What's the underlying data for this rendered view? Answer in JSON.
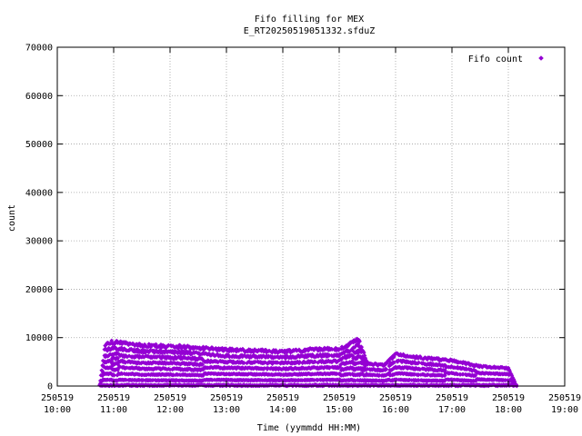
{
  "chart_data": {
    "type": "scatter",
    "title_line1": "Fifo filling for MEX",
    "title_line2": "E_RT20250519051332.sfduZ",
    "xlabel": "Time (yymmdd HH:MM)",
    "ylabel": "count",
    "legend": {
      "label": "Fifo count",
      "position": "top-right"
    },
    "colors": {
      "marker": "#9400d3",
      "grid": "#a0a0a0",
      "axis": "#000000"
    },
    "grid": true,
    "ylim": [
      0,
      70000
    ],
    "yticks": [
      0,
      10000,
      20000,
      30000,
      40000,
      50000,
      60000,
      70000
    ],
    "ytick_labels": [
      "0",
      "10000",
      "20000",
      "30000",
      "40000",
      "50000",
      "60000",
      "70000"
    ],
    "xlim_hours": [
      10.0,
      19.0
    ],
    "xticks": [
      {
        "hour": 10,
        "date": "250519",
        "time": "10:00"
      },
      {
        "hour": 11,
        "date": "250519",
        "time": "11:00"
      },
      {
        "hour": 12,
        "date": "250519",
        "time": "12:00"
      },
      {
        "hour": 13,
        "date": "250519",
        "time": "13:00"
      },
      {
        "hour": 14,
        "date": "250519",
        "time": "14:00"
      },
      {
        "hour": 15,
        "date": "250519",
        "time": "15:00"
      },
      {
        "hour": 16,
        "date": "250519",
        "time": "16:00"
      },
      {
        "hour": 17,
        "date": "250519",
        "time": "17:00"
      },
      {
        "hour": 18,
        "date": "250519",
        "time": "18:00"
      },
      {
        "hour": 19,
        "date": "250519",
        "time": "19:00"
      }
    ],
    "data_range_hours": [
      10.75,
      18.15
    ],
    "envelope": [
      {
        "hour": 10.75,
        "max": 0
      },
      {
        "hour": 10.85,
        "max": 9000
      },
      {
        "hour": 11.0,
        "max": 9500
      },
      {
        "hour": 11.5,
        "max": 8700
      },
      {
        "hour": 12.0,
        "max": 8600
      },
      {
        "hour": 12.5,
        "max": 8200
      },
      {
        "hour": 13.0,
        "max": 7800
      },
      {
        "hour": 13.5,
        "max": 7600
      },
      {
        "hour": 14.0,
        "max": 7400
      },
      {
        "hour": 14.5,
        "max": 7800
      },
      {
        "hour": 15.0,
        "max": 8000
      },
      {
        "hour": 15.35,
        "max": 10000
      },
      {
        "hour": 15.5,
        "max": 4800
      },
      {
        "hour": 15.8,
        "max": 4500
      },
      {
        "hour": 16.0,
        "max": 6800
      },
      {
        "hour": 16.5,
        "max": 6000
      },
      {
        "hour": 17.0,
        "max": 5500
      },
      {
        "hour": 17.5,
        "max": 4200
      },
      {
        "hour": 18.0,
        "max": 3800
      },
      {
        "hour": 18.15,
        "max": 0
      }
    ]
  }
}
